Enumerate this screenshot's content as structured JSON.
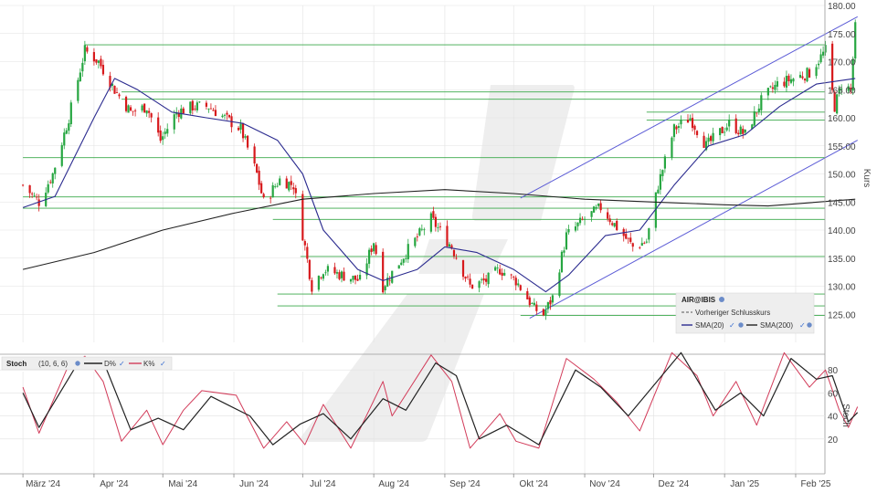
{
  "price_panel": {
    "axis_title": "Kurs",
    "legend": {
      "instrument": "AIR@IBIS",
      "previous_close_label": "Vorheriger Schlusskurs",
      "sma_short_label": "SMA(20)",
      "sma_long_label": "SMA(200)"
    }
  },
  "stoch_panel": {
    "name": "Stoch",
    "params": "(10, 6, 6)",
    "d_label": "D%",
    "k_label": "K%",
    "axis_title": "Stoch"
  },
  "colors": {
    "candle_up": "#26a641",
    "candle_down": "#d7191c",
    "sma20": "#2b2b8f",
    "sma200": "#222222",
    "horizontal_lines": "#3aa84a",
    "channel": "#5b5bd6",
    "stoch_k": "#d23c5a",
    "stoch_d": "#222222",
    "grid": "#e2e2e2"
  },
  "chart_data": [
    {
      "type": "candlestick",
      "title": "",
      "ylabel": "Kurs",
      "ylim": [
        120,
        180
      ],
      "yticks": [
        125.0,
        130.0,
        135.0,
        140.0,
        145.0,
        150.0,
        155.0,
        160.0,
        165.0,
        170.0,
        175.0,
        180.0
      ],
      "x_tick_labels": [
        "März '24",
        "Apr '24",
        "Mai '24",
        "Jun '24",
        "Jul '24",
        "Aug '24",
        "Sep '24",
        "Okt '24",
        "Nov '24",
        "Dez '24",
        "Jan '25",
        "Feb '25"
      ],
      "x_range": [
        "2024-03-01",
        "2025-02-28"
      ],
      "grid": true,
      "legend_position": "bottom-right",
      "anchors": [
        [
          "2024-03-01",
          148
        ],
        [
          "2024-03-08",
          145
        ],
        [
          "2024-03-14",
          150
        ],
        [
          "2024-03-21",
          160
        ],
        [
          "2024-03-28",
          172
        ],
        [
          "2024-04-03",
          170
        ],
        [
          "2024-04-10",
          165
        ],
        [
          "2024-04-17",
          161
        ],
        [
          "2024-04-24",
          162
        ],
        [
          "2024-04-30",
          156
        ],
        [
          "2024-05-07",
          161
        ],
        [
          "2024-05-14",
          162
        ],
        [
          "2024-05-21",
          162
        ],
        [
          "2024-05-28",
          160
        ],
        [
          "2024-06-04",
          158
        ],
        [
          "2024-06-11",
          150
        ],
        [
          "2024-06-14",
          145
        ],
        [
          "2024-06-21",
          149
        ],
        [
          "2024-06-27",
          148
        ],
        [
          "2024-07-02",
          137
        ],
        [
          "2024-07-05",
          130
        ],
        [
          "2024-07-10",
          133
        ],
        [
          "2024-07-18",
          132
        ],
        [
          "2024-07-26",
          131
        ],
        [
          "2024-08-01",
          138
        ],
        [
          "2024-08-05",
          130
        ],
        [
          "2024-08-15",
          136
        ],
        [
          "2024-08-26",
          142
        ],
        [
          "2024-09-04",
          137
        ],
        [
          "2024-09-12",
          130
        ],
        [
          "2024-09-19",
          131
        ],
        [
          "2024-09-25",
          133
        ],
        [
          "2024-10-02",
          131
        ],
        [
          "2024-10-10",
          126
        ],
        [
          "2024-10-14",
          125
        ],
        [
          "2024-10-18",
          128
        ],
        [
          "2024-10-24",
          139
        ],
        [
          "2024-11-01",
          142
        ],
        [
          "2024-11-08",
          144
        ],
        [
          "2024-11-14",
          141
        ],
        [
          "2024-11-22",
          137
        ],
        [
          "2024-11-28",
          138
        ],
        [
          "2024-12-03",
          148
        ],
        [
          "2024-12-10",
          158
        ],
        [
          "2024-12-17",
          160
        ],
        [
          "2024-12-24",
          155
        ],
        [
          "2025-01-03",
          159
        ],
        [
          "2025-01-10",
          157
        ],
        [
          "2025-01-17",
          163
        ],
        [
          "2025-01-24",
          166
        ],
        [
          "2025-01-31",
          167
        ],
        [
          "2025-02-07",
          168
        ],
        [
          "2025-02-14",
          172
        ],
        [
          "2025-02-18",
          162
        ],
        [
          "2025-02-21",
          166
        ],
        [
          "2025-02-25",
          165
        ],
        [
          "2025-02-27",
          176
        ]
      ],
      "series": [
        {
          "name": "SMA(20)",
          "values": [
            [
              "2024-03-01",
              144
            ],
            [
              "2024-03-15",
              146
            ],
            [
              "2024-04-01",
              160
            ],
            [
              "2024-04-10",
              167
            ],
            [
              "2024-04-20",
              165
            ],
            [
              "2024-05-05",
              161
            ],
            [
              "2024-05-20",
              160
            ],
            [
              "2024-06-05",
              159
            ],
            [
              "2024-06-20",
              156
            ],
            [
              "2024-07-01",
              150
            ],
            [
              "2024-07-10",
              140
            ],
            [
              "2024-07-25",
              133
            ],
            [
              "2024-08-05",
              131
            ],
            [
              "2024-08-20",
              133
            ],
            [
              "2024-09-01",
              137
            ],
            [
              "2024-09-15",
              136
            ],
            [
              "2024-10-01",
              133
            ],
            [
              "2024-10-15",
              129
            ],
            [
              "2024-10-25",
              132
            ],
            [
              "2024-11-10",
              139
            ],
            [
              "2024-11-25",
              140
            ],
            [
              "2024-12-10",
              148
            ],
            [
              "2024-12-25",
              155
            ],
            [
              "2025-01-10",
              157
            ],
            [
              "2025-01-25",
              162
            ],
            [
              "2025-02-10",
              166
            ],
            [
              "2025-02-27",
              167
            ]
          ]
        },
        {
          "name": "SMA(200)",
          "values": [
            [
              "2024-03-01",
              133
            ],
            [
              "2024-04-01",
              136
            ],
            [
              "2024-05-01",
              140
            ],
            [
              "2024-06-01",
              143
            ],
            [
              "2024-07-01",
              145.5
            ],
            [
              "2024-08-01",
              146.5
            ],
            [
              "2024-09-01",
              147.2
            ],
            [
              "2024-10-01",
              146.5
            ],
            [
              "2024-11-01",
              145.5
            ],
            [
              "2024-12-01",
              145
            ],
            [
              "2025-01-01",
              144.5
            ],
            [
              "2025-01-20",
              144.3
            ],
            [
              "2025-02-27",
              145.5
            ]
          ]
        }
      ],
      "horizontal_levels": [
        {
          "y": 173.0,
          "from": "2024-03-28",
          "to": "2025-02-28"
        },
        {
          "y": 164.6,
          "from": "2024-04-13",
          "to": "2025-02-28"
        },
        {
          "y": 163.3,
          "from": "2024-04-13",
          "to": "2025-02-28"
        },
        {
          "y": 161.0,
          "from": "2024-11-28",
          "to": "2025-02-28"
        },
        {
          "y": 159.6,
          "from": "2024-11-28",
          "to": "2025-02-28"
        },
        {
          "y": 152.9,
          "from": "2024-03-01",
          "to": "2025-02-28"
        },
        {
          "y": 145.9,
          "from": "2024-03-01",
          "to": "2025-02-28"
        },
        {
          "y": 143.9,
          "from": "2024-03-01",
          "to": "2025-02-28"
        },
        {
          "y": 141.9,
          "from": "2024-06-18",
          "to": "2025-02-28"
        },
        {
          "y": 135.3,
          "from": "2024-06-30",
          "to": "2025-02-28"
        },
        {
          "y": 128.6,
          "from": "2024-06-20",
          "to": "2025-02-28"
        },
        {
          "y": 126.5,
          "from": "2024-06-20",
          "to": "2025-02-28"
        },
        {
          "y": 124.8,
          "from": "2024-10-04",
          "to": "2025-02-28"
        }
      ],
      "trend_lines": [
        {
          "from": [
            "2024-10-08",
            124.3
          ],
          "to": [
            "2025-02-28",
            156.0
          ]
        },
        {
          "from": [
            "2024-10-04",
            145.7
          ],
          "to": [
            "2025-02-28",
            178.0
          ]
        }
      ]
    },
    {
      "type": "line",
      "title": "Stoch (10, 6, 6)",
      "ylabel": "Stoch",
      "ylim": [
        0,
        100
      ],
      "yticks": [
        20,
        40,
        60,
        80
      ],
      "grid": true,
      "series": [
        {
          "name": "K%",
          "values": [
            [
              "2024-03-01",
              65
            ],
            [
              "2024-03-08",
              25
            ],
            [
              "2024-03-20",
              80
            ],
            [
              "2024-03-28",
              92
            ],
            [
              "2024-04-05",
              70
            ],
            [
              "2024-04-13",
              18
            ],
            [
              "2024-04-24",
              45
            ],
            [
              "2024-05-01",
              15
            ],
            [
              "2024-05-10",
              45
            ],
            [
              "2024-05-18",
              62
            ],
            [
              "2024-06-02",
              58
            ],
            [
              "2024-06-14",
              12
            ],
            [
              "2024-06-24",
              35
            ],
            [
              "2024-07-02",
              15
            ],
            [
              "2024-07-10",
              50
            ],
            [
              "2024-07-22",
              12
            ],
            [
              "2024-08-05",
              70
            ],
            [
              "2024-08-09",
              40
            ],
            [
              "2024-08-26",
              93
            ],
            [
              "2024-09-04",
              70
            ],
            [
              "2024-09-12",
              12
            ],
            [
              "2024-09-25",
              42
            ],
            [
              "2024-10-02",
              18
            ],
            [
              "2024-10-12",
              12
            ],
            [
              "2024-10-24",
              90
            ],
            [
              "2024-11-05",
              72
            ],
            [
              "2024-11-15",
              52
            ],
            [
              "2024-11-25",
              27
            ],
            [
              "2024-12-09",
              95
            ],
            [
              "2024-12-20",
              75
            ],
            [
              "2024-12-27",
              40
            ],
            [
              "2025-01-06",
              70
            ],
            [
              "2025-01-15",
              32
            ],
            [
              "2025-01-27",
              95
            ],
            [
              "2025-02-07",
              65
            ],
            [
              "2025-02-14",
              80
            ],
            [
              "2025-02-20",
              45
            ],
            [
              "2025-02-24",
              30
            ],
            [
              "2025-02-28",
              48
            ]
          ]
        },
        {
          "name": "D%",
          "values": [
            [
              "2024-03-01",
              60
            ],
            [
              "2024-03-08",
              30
            ],
            [
              "2024-03-25",
              86
            ],
            [
              "2024-04-05",
              88
            ],
            [
              "2024-04-17",
              28
            ],
            [
              "2024-04-29",
              38
            ],
            [
              "2024-05-10",
              28
            ],
            [
              "2024-05-22",
              57
            ],
            [
              "2024-06-08",
              40
            ],
            [
              "2024-06-18",
              15
            ],
            [
              "2024-06-30",
              33
            ],
            [
              "2024-07-10",
              42
            ],
            [
              "2024-07-22",
              20
            ],
            [
              "2024-08-05",
              55
            ],
            [
              "2024-08-15",
              45
            ],
            [
              "2024-08-28",
              86
            ],
            [
              "2024-09-06",
              75
            ],
            [
              "2024-09-16",
              20
            ],
            [
              "2024-09-28",
              32
            ],
            [
              "2024-10-12",
              15
            ],
            [
              "2024-10-28",
              80
            ],
            [
              "2024-11-08",
              65
            ],
            [
              "2024-11-20",
              40
            ],
            [
              "2024-12-13",
              95
            ],
            [
              "2024-12-28",
              45
            ],
            [
              "2025-01-08",
              60
            ],
            [
              "2025-01-18",
              40
            ],
            [
              "2025-01-30",
              90
            ],
            [
              "2025-02-10",
              72
            ],
            [
              "2025-02-17",
              75
            ],
            [
              "2025-02-24",
              35
            ],
            [
              "2025-02-28",
              43
            ]
          ]
        }
      ]
    }
  ]
}
